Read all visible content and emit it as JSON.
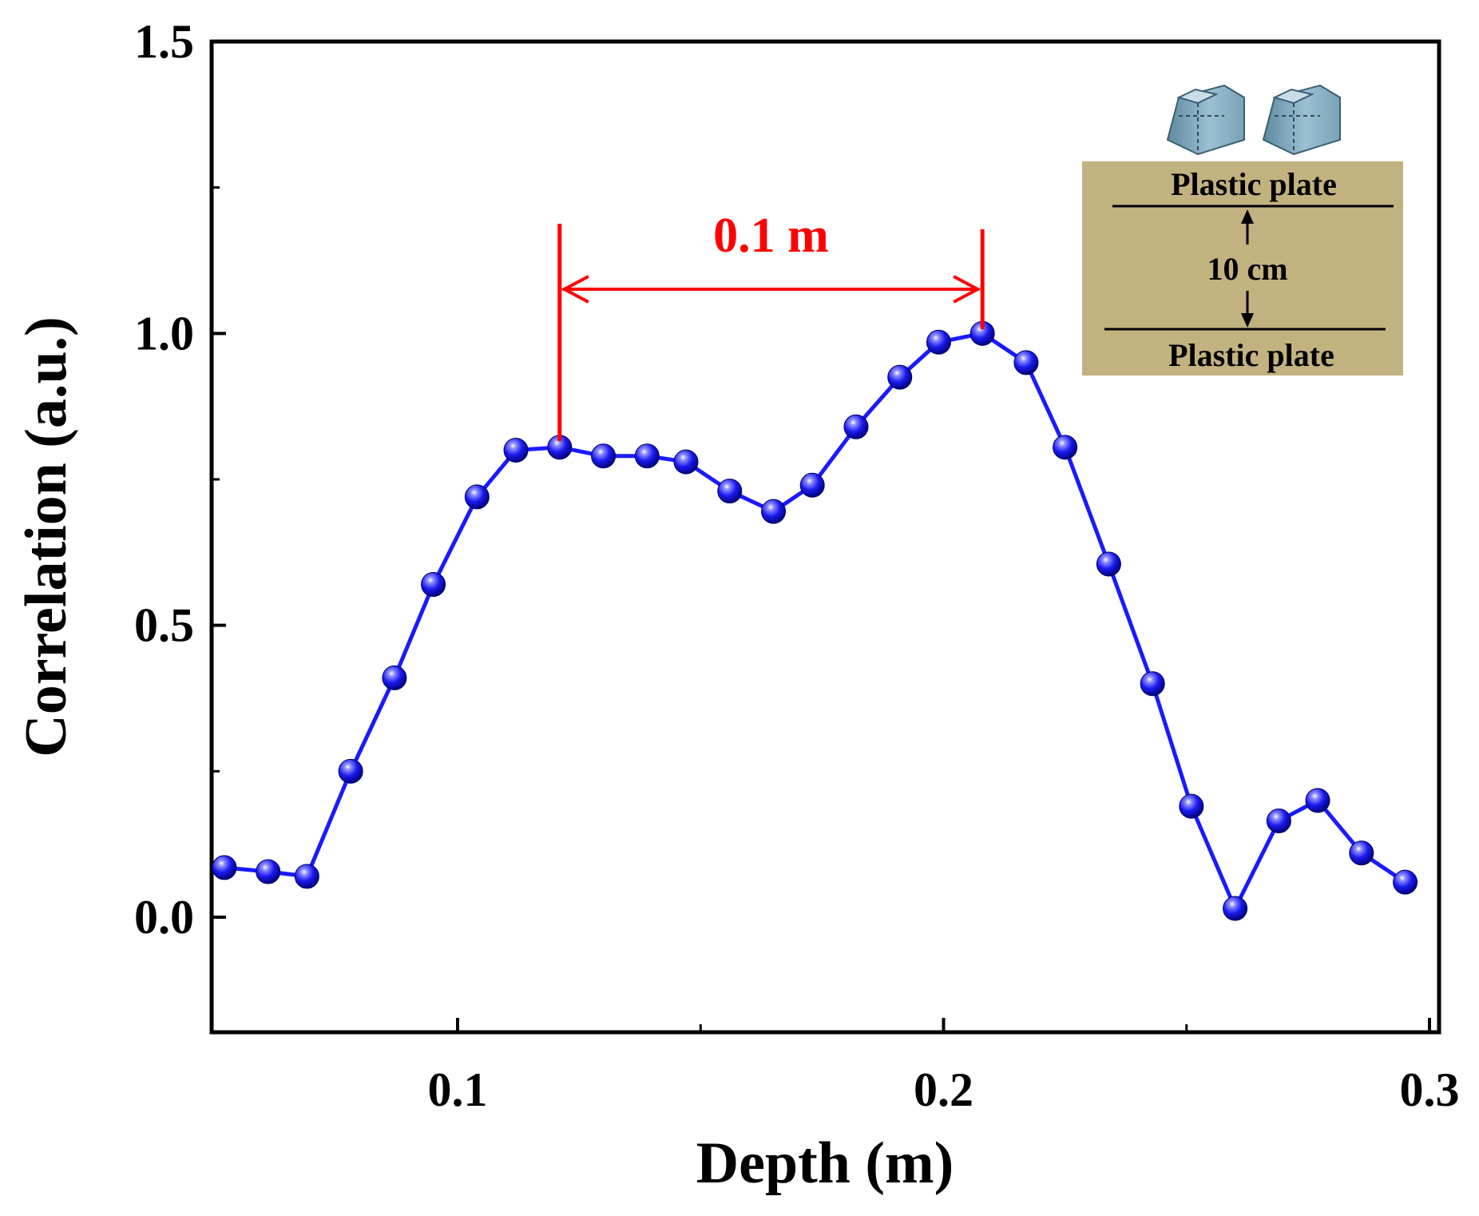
{
  "chart_data": {
    "type": "line",
    "title": "",
    "xlabel": "Depth (m)",
    "ylabel": "Correlation (a.u.)",
    "xlim": [
      0.05,
      0.3
    ],
    "ylim": [
      -0.2,
      1.5
    ],
    "xticks": [
      0.1,
      0.2,
      0.3
    ],
    "xtick_labels": [
      "0.1",
      "0.2",
      "0.3"
    ],
    "yticks": [
      0.0,
      0.5,
      1.0,
      1.5
    ],
    "ytick_labels": [
      "0.0",
      "0.5",
      "1.0",
      "1.5"
    ],
    "grid": false,
    "series": [
      {
        "name": "Correlation",
        "color": "#1a1aff",
        "marker": "sphere",
        "x": [
          0.052,
          0.061,
          0.069,
          0.078,
          0.087,
          0.095,
          0.104,
          0.112,
          0.121,
          0.13,
          0.139,
          0.147,
          0.156,
          0.165,
          0.173,
          0.182,
          0.191,
          0.199,
          0.208,
          0.217,
          0.225,
          0.234,
          0.243,
          0.251,
          0.26,
          0.269,
          0.277,
          0.286,
          0.295
        ],
        "values": [
          0.085,
          0.078,
          0.07,
          0.25,
          0.41,
          0.57,
          0.72,
          0.8,
          0.805,
          0.79,
          0.79,
          0.78,
          0.73,
          0.695,
          0.74,
          0.84,
          0.925,
          0.985,
          1.0,
          0.95,
          0.805,
          0.605,
          0.4,
          0.19,
          0.015,
          0.165,
          0.2,
          0.11,
          0.06
        ]
      }
    ],
    "annotations": [
      {
        "type": "span-arrow",
        "text": "0.1 m",
        "color": "#ff0000",
        "x_start": 0.121,
        "x_end": 0.208
      }
    ]
  },
  "inset": {
    "top_label": "Plastic plate",
    "gap_label": "10 cm",
    "bottom_label": "Plastic plate",
    "background_color": "#c2b280"
  }
}
